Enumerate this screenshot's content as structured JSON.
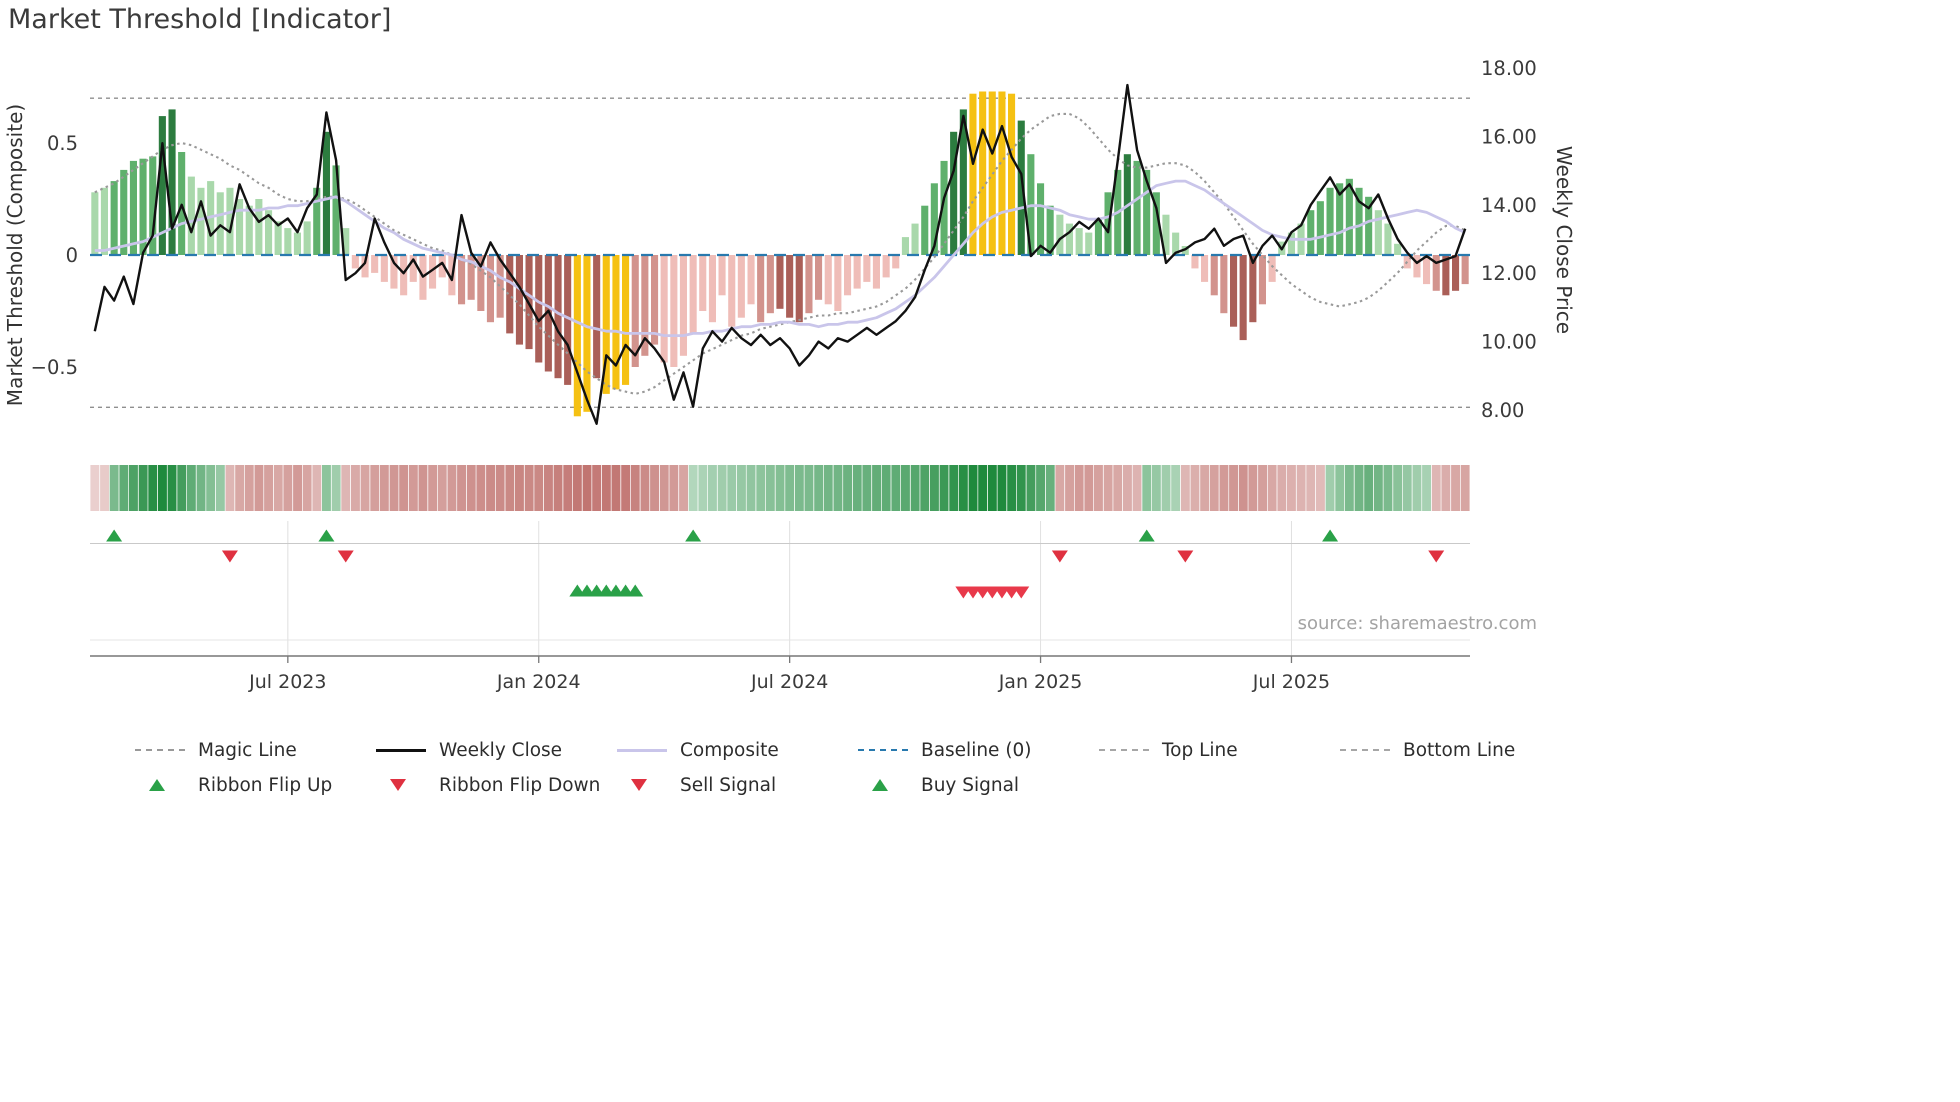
{
  "title": "Market Threshold [Indicator]",
  "source_text": "source: sharemaestro.com",
  "legend": {
    "row1": [
      {
        "label": "Magic Line",
        "marker": "dashed-gray-line"
      },
      {
        "label": "Weekly Close",
        "marker": "solid-black-line"
      },
      {
        "label": "Composite",
        "marker": "solid-lavender-line"
      },
      {
        "label": "Baseline (0)",
        "marker": "dashed-blue-line"
      },
      {
        "label": "Top Line",
        "marker": "dashed-gray-line-thin"
      },
      {
        "label": "Bottom Line",
        "marker": "dashed-gray-line-thin"
      }
    ],
    "row2": [
      {
        "label": "Ribbon Flip Up",
        "marker": "green-up-triangle"
      },
      {
        "label": "Ribbon Flip Down",
        "marker": "red-down-triangle"
      },
      {
        "label": "Sell Signal",
        "marker": "red-down-triangle"
      },
      {
        "label": "Buy Signal",
        "marker": "green-up-triangle"
      }
    ]
  },
  "colors": {
    "bar_styles": {
      "g1": "#a9d8ab",
      "g2": "#5fb06c",
      "g3": "#2c7c3f",
      "p1": "#efbdb8",
      "p2": "#d2938d",
      "r": "#aa5f58",
      "y": "#f5c113"
    },
    "weekly_close": "#111111",
    "composite": "#c9c5ea",
    "magic": "#999999",
    "baseline": "#2879ae",
    "guide": "#8f8f8f",
    "grid": "#e0e0e0",
    "separator": "#c9c9c9",
    "axis": "#777777",
    "tick_text": "#3a3a3a",
    "ribbon_pos": "#1f8a3d",
    "ribbon_neg": "#b2534e",
    "flip_up": "#2aa148",
    "flip_down": "#df3140",
    "buy": "#2aa148",
    "sell": "#e8394a"
  },
  "chart_data": {
    "type": "combo",
    "title": "Market Threshold [Indicator]",
    "weeks": 143,
    "left_axis": {
      "title": "Market Threshold (Composite)",
      "tick_labels": [
        "0.5",
        "0",
        "−0.5"
      ],
      "tick_values": [
        0.5,
        0,
        -0.5
      ],
      "range": [
        -0.87,
        0.87
      ]
    },
    "right_axis": {
      "title": "Weekly Close Price",
      "tick_labels": [
        "18.00",
        "16.00",
        "14.00",
        "12.00",
        "10.00",
        "8.00"
      ],
      "tick_values": [
        18,
        16,
        14,
        12,
        10,
        8
      ],
      "range": [
        7.0,
        18.35
      ]
    },
    "x_axis": {
      "ticks": [
        {
          "label": "Jul 2023",
          "week": 20
        },
        {
          "label": "Jan 2024",
          "week": 46
        },
        {
          "label": "Jul 2024",
          "week": 72
        },
        {
          "label": "Jan 2025",
          "week": 98
        },
        {
          "label": "Jul 2025",
          "week": 124
        }
      ]
    },
    "reference_lines": {
      "baseline": 0,
      "top_line": 0.7,
      "bottom_line": -0.68
    },
    "series": {
      "threshold": [
        0.28,
        0.3,
        0.33,
        0.38,
        0.42,
        0.43,
        0.44,
        0.62,
        0.65,
        0.46,
        0.35,
        0.3,
        0.33,
        0.28,
        0.3,
        0.25,
        0.22,
        0.25,
        0.2,
        0.15,
        0.12,
        0.1,
        0.15,
        0.3,
        0.55,
        0.4,
        0.12,
        -0.06,
        -0.1,
        -0.08,
        -0.12,
        -0.15,
        -0.18,
        -0.12,
        -0.2,
        -0.15,
        -0.1,
        -0.18,
        -0.22,
        -0.2,
        -0.25,
        -0.3,
        -0.28,
        -0.35,
        -0.4,
        -0.42,
        -0.48,
        -0.52,
        -0.55,
        -0.58,
        -0.72,
        -0.7,
        -0.55,
        -0.62,
        -0.6,
        -0.58,
        -0.5,
        -0.45,
        -0.4,
        -0.48,
        -0.5,
        -0.45,
        -0.35,
        -0.25,
        -0.3,
        -0.18,
        -0.32,
        -0.28,
        -0.22,
        -0.3,
        -0.26,
        -0.24,
        -0.28,
        -0.3,
        -0.26,
        -0.2,
        -0.22,
        -0.25,
        -0.18,
        -0.15,
        -0.12,
        -0.15,
        -0.1,
        -0.06,
        0.08,
        0.14,
        0.22,
        0.32,
        0.42,
        0.55,
        0.65,
        0.72,
        0.73,
        0.73,
        0.73,
        0.72,
        0.6,
        0.45,
        0.32,
        0.22,
        0.18,
        0.14,
        0.12,
        0.1,
        0.16,
        0.28,
        0.38,
        0.45,
        0.42,
        0.38,
        0.28,
        0.18,
        0.1,
        0.04,
        -0.06,
        -0.12,
        -0.18,
        -0.26,
        -0.32,
        -0.38,
        -0.3,
        -0.22,
        -0.12,
        0.06,
        0.1,
        0.14,
        0.2,
        0.24,
        0.3,
        0.32,
        0.34,
        0.3,
        0.26,
        0.2,
        0.14,
        0.05,
        -0.06,
        -0.1,
        -0.13,
        -0.16,
        -0.18,
        -0.16,
        -0.13
      ],
      "bar_styles": [
        "g1",
        "g1",
        "g2",
        "g2",
        "g2",
        "g2",
        "g2",
        "g3",
        "g3",
        "g2",
        "g1",
        "g1",
        "g1",
        "g1",
        "g1",
        "g1",
        "g1",
        "g1",
        "g1",
        "g1",
        "g1",
        "g1",
        "g1",
        "g2",
        "g3",
        "g2",
        "g1",
        "p1",
        "p1",
        "p1",
        "p1",
        "p1",
        "p1",
        "p1",
        "p1",
        "p1",
        "p1",
        "p1",
        "p2",
        "p2",
        "p2",
        "p2",
        "p2",
        "r",
        "r",
        "r",
        "r",
        "r",
        "r",
        "r",
        "y",
        "y",
        "r",
        "y",
        "y",
        "y",
        "p2",
        "p2",
        "p2",
        "p1",
        "p1",
        "p1",
        "p1",
        "p1",
        "p1",
        "p1",
        "p1",
        "p1",
        "p1",
        "p2",
        "p2",
        "r",
        "r",
        "r",
        "p2",
        "p2",
        "p1",
        "p1",
        "p1",
        "p1",
        "p1",
        "p1",
        "p1",
        "p1",
        "g1",
        "g1",
        "g2",
        "g2",
        "g2",
        "g3",
        "g3",
        "y",
        "y",
        "y",
        "y",
        "y",
        "g3",
        "g2",
        "g2",
        "g2",
        "g1",
        "g1",
        "g1",
        "g1",
        "g2",
        "g2",
        "g2",
        "g3",
        "g2",
        "g2",
        "g2",
        "g1",
        "g1",
        "g1",
        "p1",
        "p1",
        "p2",
        "p2",
        "r",
        "r",
        "r",
        "p2",
        "p1",
        "g1",
        "g1",
        "g1",
        "g2",
        "g2",
        "g2",
        "g2",
        "g2",
        "g2",
        "g2",
        "g1",
        "g1",
        "g1",
        "p1",
        "p1",
        "p1",
        "p2",
        "r",
        "r",
        "p2"
      ],
      "weekly_close": [
        10.3,
        11.6,
        11.2,
        11.9,
        11.1,
        12.6,
        13.1,
        15.8,
        13.3,
        14.0,
        13.2,
        14.1,
        13.1,
        13.4,
        13.2,
        14.6,
        13.9,
        13.5,
        13.7,
        13.4,
        13.6,
        13.2,
        13.9,
        14.3,
        16.7,
        15.3,
        11.8,
        12.0,
        12.3,
        13.6,
        12.9,
        12.3,
        12.0,
        12.4,
        11.9,
        12.1,
        12.3,
        11.8,
        13.7,
        12.6,
        12.2,
        12.9,
        12.4,
        12.0,
        11.6,
        11.1,
        10.6,
        10.9,
        10.3,
        9.9,
        9.1,
        8.3,
        7.6,
        9.6,
        9.3,
        9.9,
        9.6,
        10.1,
        9.8,
        9.4,
        8.3,
        9.1,
        8.1,
        9.8,
        10.3,
        10.0,
        10.4,
        10.1,
        9.9,
        10.2,
        9.9,
        10.1,
        9.8,
        9.3,
        9.6,
        10.0,
        9.8,
        10.1,
        10.0,
        10.2,
        10.4,
        10.2,
        10.4,
        10.6,
        10.9,
        11.3,
        12.1,
        12.8,
        14.2,
        15.0,
        16.6,
        15.2,
        16.2,
        15.5,
        16.3,
        15.4,
        14.9,
        12.5,
        12.8,
        12.6,
        13.0,
        13.2,
        13.5,
        13.3,
        13.6,
        13.2,
        15.3,
        17.5,
        15.6,
        14.7,
        13.9,
        12.3,
        12.6,
        12.7,
        12.9,
        13.0,
        13.3,
        12.8,
        13.0,
        13.1,
        12.3,
        12.8,
        13.1,
        12.7,
        13.2,
        13.4,
        14.0,
        14.4,
        14.8,
        14.3,
        14.6,
        14.1,
        13.9,
        14.3,
        13.6,
        13.0,
        12.6,
        12.3,
        12.5,
        12.3,
        12.4,
        12.5,
        13.3
      ],
      "composite": [
        0.02,
        0.02,
        0.03,
        0.04,
        0.05,
        0.06,
        0.08,
        0.1,
        0.12,
        0.14,
        0.15,
        0.16,
        0.17,
        0.18,
        0.19,
        0.2,
        0.2,
        0.2,
        0.21,
        0.21,
        0.22,
        0.22,
        0.23,
        0.24,
        0.25,
        0.26,
        0.24,
        0.21,
        0.18,
        0.15,
        0.12,
        0.1,
        0.07,
        0.05,
        0.03,
        0.02,
        0.01,
        0.0,
        -0.02,
        -0.03,
        -0.05,
        -0.07,
        -0.1,
        -0.12,
        -0.15,
        -0.18,
        -0.21,
        -0.23,
        -0.26,
        -0.28,
        -0.3,
        -0.32,
        -0.33,
        -0.34,
        -0.34,
        -0.35,
        -0.35,
        -0.35,
        -0.35,
        -0.36,
        -0.36,
        -0.36,
        -0.35,
        -0.35,
        -0.34,
        -0.34,
        -0.33,
        -0.32,
        -0.32,
        -0.31,
        -0.31,
        -0.3,
        -0.3,
        -0.31,
        -0.31,
        -0.32,
        -0.31,
        -0.31,
        -0.3,
        -0.3,
        -0.29,
        -0.28,
        -0.26,
        -0.24,
        -0.21,
        -0.18,
        -0.14,
        -0.1,
        -0.05,
        0.0,
        0.05,
        0.1,
        0.14,
        0.17,
        0.19,
        0.2,
        0.21,
        0.22,
        0.22,
        0.21,
        0.2,
        0.18,
        0.17,
        0.16,
        0.16,
        0.17,
        0.19,
        0.22,
        0.25,
        0.28,
        0.31,
        0.32,
        0.33,
        0.33,
        0.31,
        0.29,
        0.26,
        0.23,
        0.2,
        0.17,
        0.14,
        0.11,
        0.09,
        0.08,
        0.07,
        0.07,
        0.07,
        0.08,
        0.09,
        0.1,
        0.12,
        0.13,
        0.15,
        0.16,
        0.17,
        0.18,
        0.19,
        0.2,
        0.19,
        0.17,
        0.15,
        0.12,
        0.1
      ],
      "magic_line": [
        0.28,
        0.3,
        0.32,
        0.35,
        0.38,
        0.41,
        0.44,
        0.47,
        0.49,
        0.5,
        0.49,
        0.47,
        0.45,
        0.43,
        0.4,
        0.38,
        0.35,
        0.32,
        0.3,
        0.27,
        0.25,
        0.24,
        0.24,
        0.25,
        0.26,
        0.26,
        0.25,
        0.23,
        0.2,
        0.17,
        0.14,
        0.11,
        0.09,
        0.07,
        0.05,
        0.03,
        0.02,
        0.0,
        -0.02,
        -0.04,
        -0.07,
        -0.1,
        -0.14,
        -0.18,
        -0.22,
        -0.27,
        -0.32,
        -0.36,
        -0.4,
        -0.44,
        -0.48,
        -0.52,
        -0.55,
        -0.58,
        -0.6,
        -0.61,
        -0.62,
        -0.61,
        -0.59,
        -0.56,
        -0.53,
        -0.5,
        -0.47,
        -0.44,
        -0.42,
        -0.4,
        -0.38,
        -0.36,
        -0.35,
        -0.33,
        -0.32,
        -0.31,
        -0.3,
        -0.29,
        -0.28,
        -0.27,
        -0.27,
        -0.26,
        -0.26,
        -0.25,
        -0.24,
        -0.23,
        -0.21,
        -0.18,
        -0.15,
        -0.11,
        -0.06,
        -0.01,
        0.05,
        0.11,
        0.17,
        0.24,
        0.3,
        0.36,
        0.42,
        0.47,
        0.52,
        0.56,
        0.59,
        0.62,
        0.63,
        0.63,
        0.61,
        0.57,
        0.52,
        0.47,
        0.43,
        0.4,
        0.39,
        0.39,
        0.4,
        0.41,
        0.41,
        0.4,
        0.37,
        0.33,
        0.28,
        0.23,
        0.17,
        0.11,
        0.05,
        0.0,
        -0.05,
        -0.09,
        -0.13,
        -0.16,
        -0.19,
        -0.21,
        -0.22,
        -0.23,
        -0.22,
        -0.21,
        -0.19,
        -0.16,
        -0.12,
        -0.08,
        -0.03,
        0.02,
        0.06,
        0.1,
        0.13,
        0.13,
        0.11
      ]
    },
    "ribbon": [
      -0.12,
      -0.15,
      0.5,
      0.65,
      0.75,
      0.85,
      0.95,
      1.0,
      0.95,
      0.8,
      0.65,
      0.55,
      0.45,
      0.35,
      -0.3,
      -0.4,
      -0.45,
      -0.5,
      -0.45,
      -0.4,
      -0.45,
      -0.5,
      -0.42,
      -0.3,
      0.4,
      0.3,
      -0.3,
      -0.38,
      -0.42,
      -0.46,
      -0.5,
      -0.52,
      -0.54,
      -0.5,
      -0.54,
      -0.5,
      -0.46,
      -0.5,
      -0.54,
      -0.56,
      -0.58,
      -0.6,
      -0.6,
      -0.62,
      -0.64,
      -0.62,
      -0.62,
      -0.65,
      -0.68,
      -0.7,
      -0.74,
      -0.76,
      -0.72,
      -0.74,
      -0.74,
      -0.72,
      -0.66,
      -0.6,
      -0.56,
      -0.52,
      -0.5,
      -0.42,
      0.2,
      0.24,
      0.28,
      0.3,
      0.33,
      0.35,
      0.38,
      0.4,
      0.43,
      0.45,
      0.48,
      0.5,
      0.5,
      0.53,
      0.55,
      0.55,
      0.58,
      0.6,
      0.6,
      0.63,
      0.65,
      0.65,
      0.68,
      0.7,
      0.74,
      0.78,
      0.84,
      0.9,
      0.95,
      1.0,
      1.0,
      1.0,
      1.0,
      0.95,
      0.9,
      0.8,
      0.7,
      0.6,
      -0.4,
      -0.45,
      -0.5,
      -0.5,
      -0.45,
      -0.42,
      -0.4,
      -0.36,
      -0.32,
      0.4,
      0.35,
      0.3,
      0.25,
      -0.3,
      -0.35,
      -0.4,
      -0.45,
      -0.5,
      -0.52,
      -0.55,
      -0.5,
      -0.46,
      -0.4,
      -0.36,
      -0.34,
      -0.32,
      -0.3,
      -0.26,
      0.3,
      0.4,
      0.5,
      0.55,
      0.6,
      0.55,
      0.5,
      0.42,
      0.36,
      0.3,
      0.26,
      -0.3,
      -0.36,
      -0.4,
      -0.42
    ],
    "signals": {
      "ribbon_flip_up": [
        2,
        24,
        62,
        109,
        128
      ],
      "ribbon_flip_down": [
        14,
        26,
        100,
        113,
        139
      ],
      "buy_signal": [
        50,
        51,
        52,
        53,
        54,
        55,
        56
      ],
      "sell_signal": [
        90,
        91,
        92,
        93,
        94,
        95,
        96
      ]
    }
  }
}
